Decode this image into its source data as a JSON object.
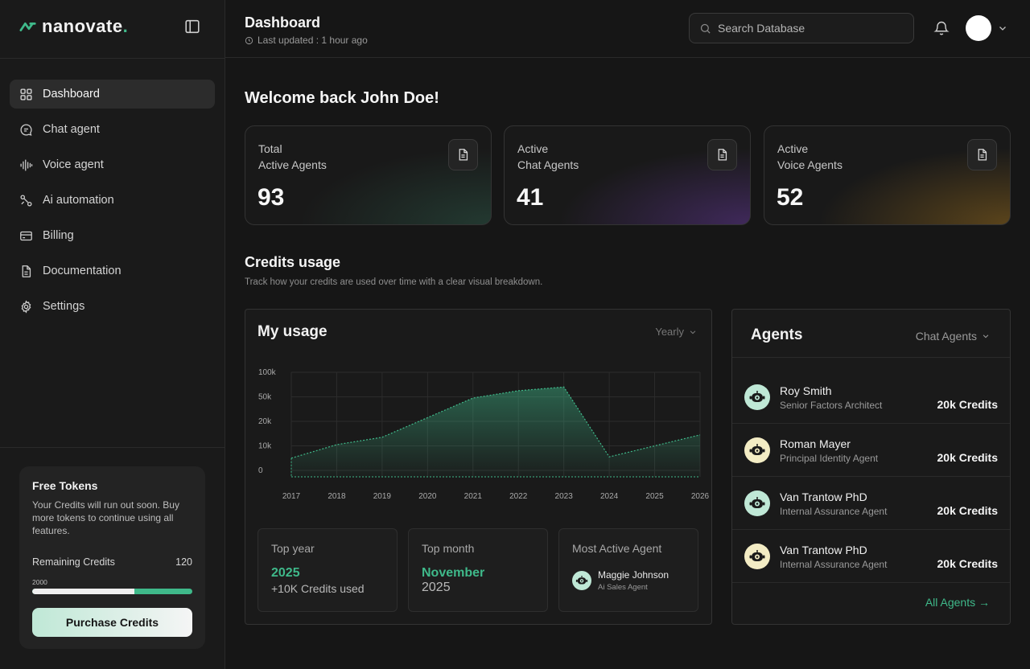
{
  "brand": {
    "name": "nanovate",
    "dot": ".",
    "accent": "#3fb98a"
  },
  "nav": {
    "items": [
      {
        "label": "Dashboard",
        "icon": "grid-icon",
        "active": true
      },
      {
        "label": "Chat agent",
        "icon": "chat-icon"
      },
      {
        "label": "Voice agent",
        "icon": "waveform-icon"
      },
      {
        "label": "Ai automation",
        "icon": "automation-icon"
      },
      {
        "label": "Billing",
        "icon": "credit-card-icon"
      },
      {
        "label": "Documentation",
        "icon": "document-icon"
      },
      {
        "label": "Settings",
        "icon": "gear-icon"
      }
    ]
  },
  "tokens": {
    "title": "Free Tokens",
    "description": "Your Credits will run out soon. Buy more tokens to continue using all features.",
    "remaining_label": "Remaining Credits",
    "remaining_value": "120",
    "cap_label": "2000",
    "used_fraction": 0.64,
    "purchase_label": "Purchase Credits"
  },
  "header": {
    "title": "Dashboard",
    "updated": "Last updated : 1 hour ago",
    "search_placeholder": "Search Database"
  },
  "welcome": "Welcome back John Doe!",
  "stats": [
    {
      "line1": "Total",
      "line2": "Active Agents",
      "value": "93"
    },
    {
      "line1": "Active",
      "line2": "Chat Agents",
      "value": "41"
    },
    {
      "line1": "Active",
      "line2": "Voice Agents",
      "value": "52"
    }
  ],
  "credits": {
    "title": "Credits usage",
    "description": "Track how your credits are used over time with a clear visual breakdown."
  },
  "usage": {
    "title": "My usage",
    "filter": "Yearly",
    "top_year": {
      "label": "Top year",
      "value": "2025",
      "sub": "+10K Credits used"
    },
    "top_month": {
      "label": "Top month",
      "value": "November",
      "sub": "2025"
    },
    "most_active": {
      "label": "Most Active Agent",
      "name": "Maggie Johnson",
      "role": "Ai Sales Agent"
    }
  },
  "chart_data": {
    "type": "area",
    "categories": [
      "2017",
      "2018",
      "2019",
      "2020",
      "2021",
      "2022",
      "2023",
      "2024",
      "2025",
      "2026"
    ],
    "y_tick_labels": [
      "0",
      "10k",
      "20k",
      "50k",
      "100k"
    ],
    "series": [
      {
        "values": [
          0.5,
          1.05,
          1.35,
          2.15,
          2.95,
          3.25,
          3.4,
          0.55,
          1.0,
          1.45
        ]
      }
    ],
    "ylim": [
      0,
      4
    ],
    "grid": true,
    "color": "#3fb98a"
  },
  "agents": {
    "title": "Agents",
    "filter": "Chat Agents",
    "list": [
      {
        "name": "Roy Smith",
        "role": "Senior Factors Architect",
        "credits": "20k Credits",
        "tone": "green"
      },
      {
        "name": "Roman Mayer",
        "role": "Principal Identity Agent",
        "credits": "20k Credits",
        "tone": "yellow"
      },
      {
        "name": "Van Trantow PhD",
        "role": "Internal Assurance Agent",
        "credits": "20k Credits",
        "tone": "green"
      },
      {
        "name": "Van Trantow PhD",
        "role": "Internal Assurance Agent",
        "credits": "20k Credits",
        "tone": "yellow"
      }
    ],
    "all_label": "All Agents →"
  }
}
